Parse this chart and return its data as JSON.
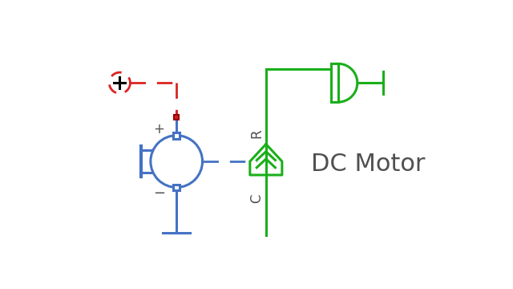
{
  "bg_color": "#ffffff",
  "blue": "#4472C4",
  "green": "#1AAF1A",
  "red": "#DD2222",
  "dark_gray": "#505050",
  "title": "DC Motor",
  "title_fontsize": 22,
  "lw": 2.2
}
